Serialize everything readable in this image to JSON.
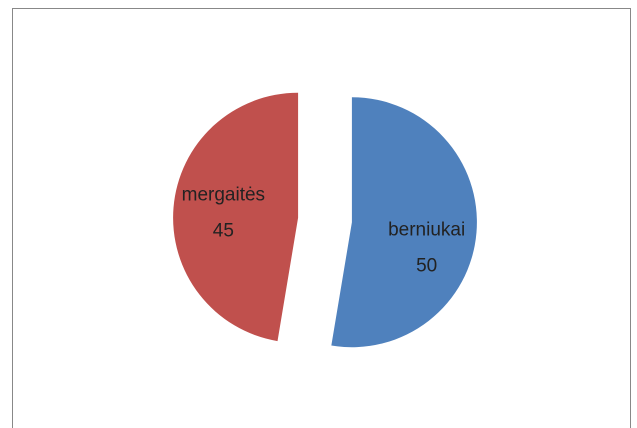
{
  "chart_data": {
    "type": "pie",
    "categories": [
      "berniukai",
      "mergaitės"
    ],
    "values": [
      50,
      45
    ],
    "colors": [
      "#4f81bd",
      "#c0504d"
    ],
    "exploded": true
  }
}
